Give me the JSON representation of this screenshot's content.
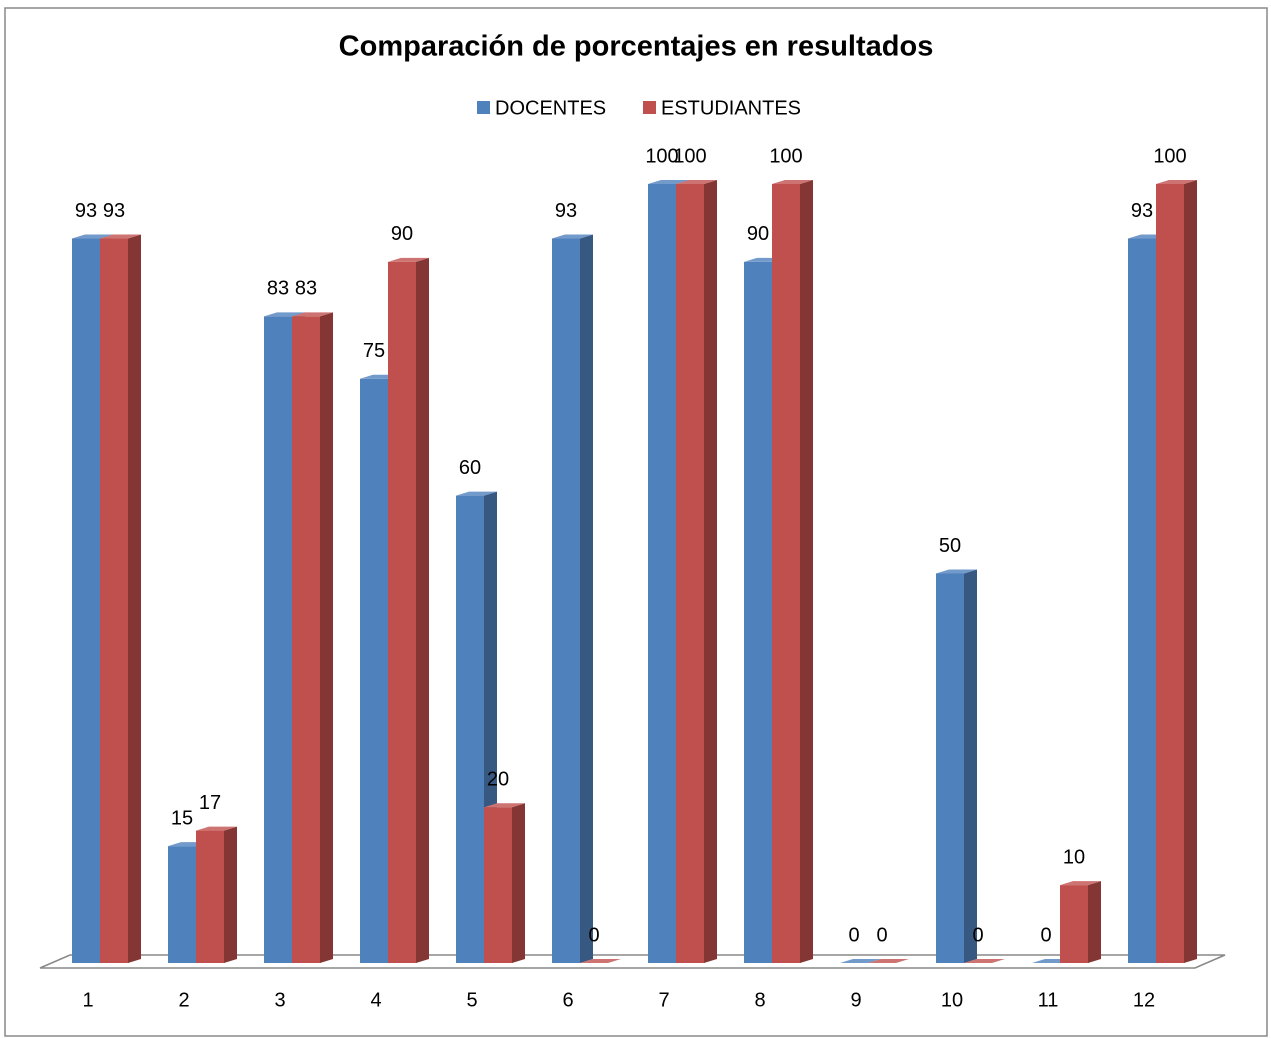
{
  "chart_data": {
    "type": "bar3d",
    "title": "Comparación de porcentajes en resultados",
    "categories": [
      "1",
      "2",
      "3",
      "4",
      "5",
      "6",
      "7",
      "8",
      "9",
      "10",
      "11",
      "12"
    ],
    "series": [
      {
        "name": "DOCENTES",
        "color": "#4f81bd",
        "values": [
          93,
          15,
          83,
          75,
          60,
          93,
          100,
          90,
          0,
          50,
          0,
          93
        ]
      },
      {
        "name": "ESTUDIANTES",
        "color": "#c0504d",
        "values": [
          93,
          17,
          83,
          90,
          20,
          0,
          100,
          100,
          0,
          0,
          10,
          100
        ]
      }
    ],
    "ylim": [
      0,
      100
    ],
    "legend": "top"
  }
}
